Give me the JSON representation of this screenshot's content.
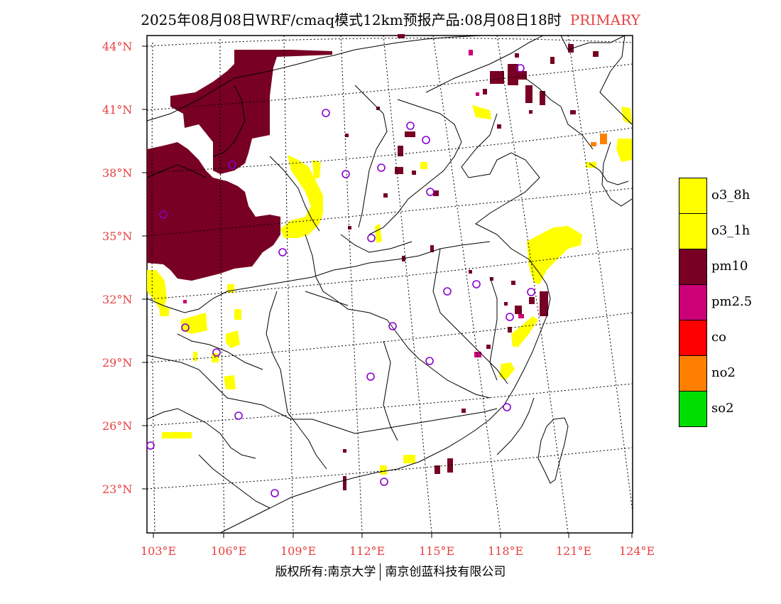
{
  "header": {
    "title": "2025年08月08日WRF/cmaq模式12km预报产品:08月08日18时",
    "tag": "PRIMARY"
  },
  "map": {
    "lat_labels": [
      "44°N",
      "41°N",
      "38°N",
      "35°N",
      "32°N",
      "29°N",
      "26°N",
      "23°N"
    ],
    "lon_labels": [
      "103°E",
      "106°E",
      "109°E",
      "112°E",
      "115°E",
      "118°E",
      "121°E",
      "124°E"
    ],
    "colors": {
      "pm10": "#770024",
      "o3": "#ffff00",
      "pm25": "#cc0077",
      "no2": "#ff7f00",
      "station": "#8800cc"
    }
  },
  "legend": {
    "items": [
      {
        "label": "o3_8h",
        "color": "#ffff00"
      },
      {
        "label": "o3_1h",
        "color": "#ffff00"
      },
      {
        "label": "pm10",
        "color": "#770024"
      },
      {
        "label": "pm2.5",
        "color": "#cc0077"
      },
      {
        "label": "co",
        "color": "#ff0000"
      },
      {
        "label": "no2",
        "color": "#ff7f00"
      },
      {
        "label": "so2",
        "color": "#00dd00"
      }
    ]
  },
  "footer": {
    "copyright_left": "版权所有:南京大学",
    "copyright_right": "南京创蓝科技有限公司"
  }
}
